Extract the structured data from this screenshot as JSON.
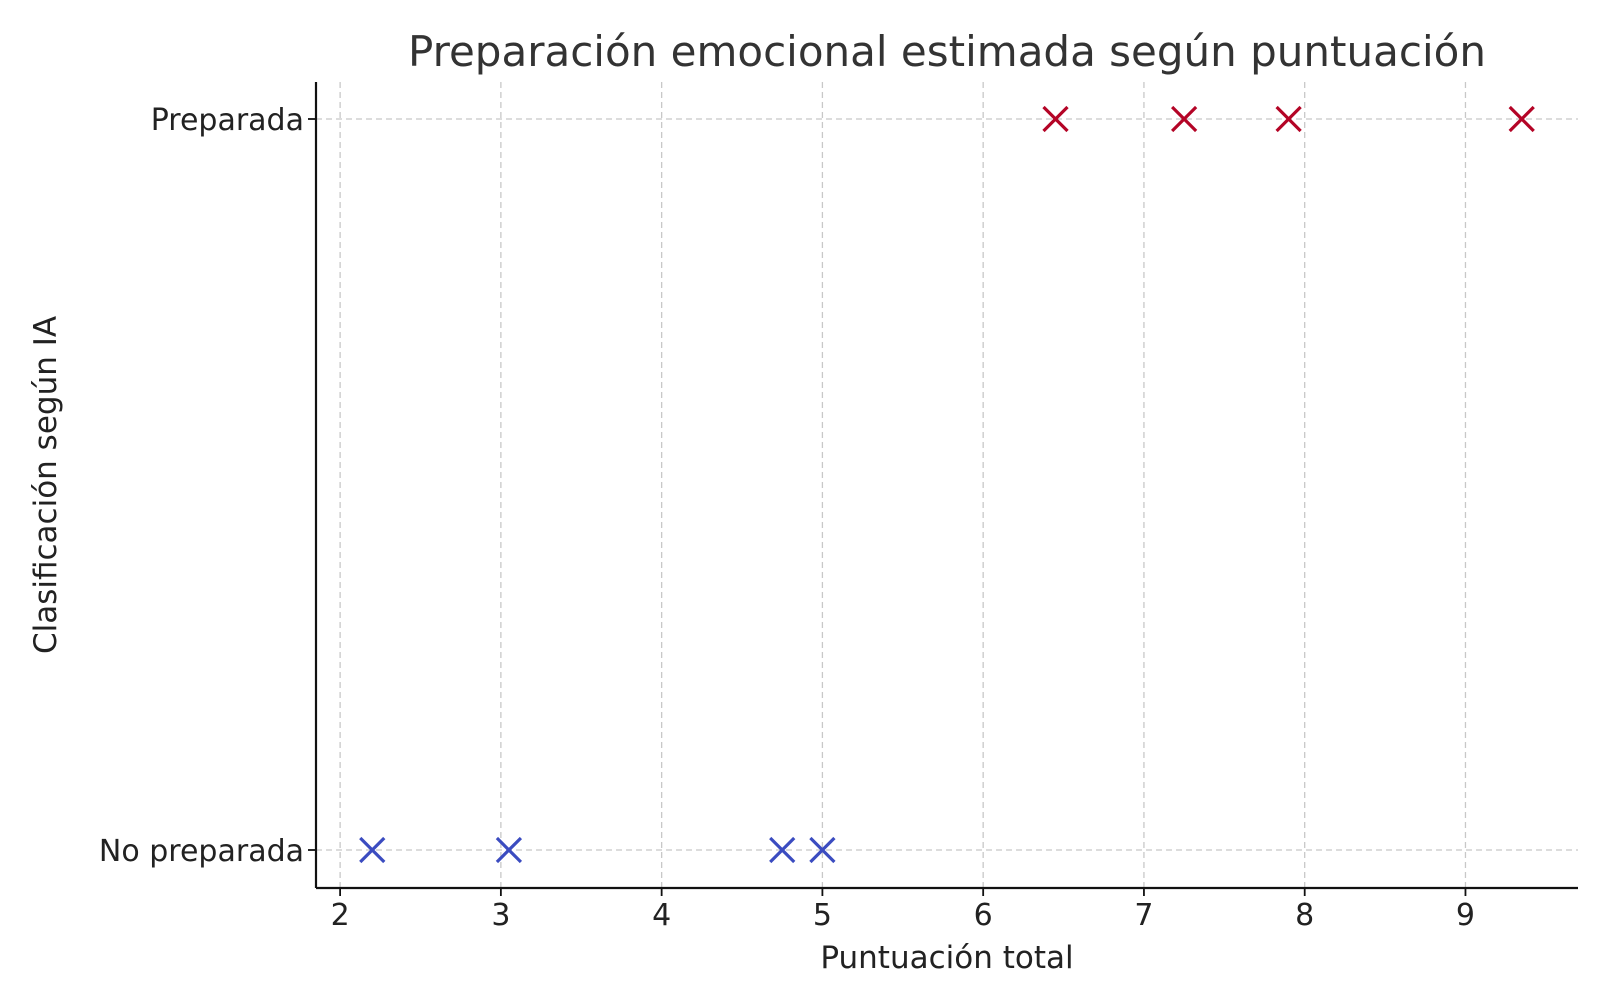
{
  "chart_data": {
    "type": "scatter",
    "title": "Preparación emocional estimada según puntuación",
    "xlabel": "Puntuación total",
    "ylabel": "Clasificación según IA",
    "xlim": [
      1.85,
      9.7
    ],
    "xticks": [
      2,
      3,
      4,
      5,
      6,
      7,
      8,
      9
    ],
    "yticks": [
      0,
      1
    ],
    "ytick_labels": [
      "No preparada",
      "Preparada"
    ],
    "grid": true,
    "marker": "x",
    "colors": {
      "Preparada": "#b40426",
      "No preparada": "#3b4cc0"
    },
    "points": [
      {
        "x": 2.2,
        "y": 0,
        "label": "No preparada"
      },
      {
        "x": 3.05,
        "y": 0,
        "label": "No preparada"
      },
      {
        "x": 4.75,
        "y": 0,
        "label": "No preparada"
      },
      {
        "x": 5.0,
        "y": 0,
        "label": "No preparada"
      },
      {
        "x": 6.45,
        "y": 1,
        "label": "Preparada"
      },
      {
        "x": 7.25,
        "y": 1,
        "label": "Preparada"
      },
      {
        "x": 7.9,
        "y": 1,
        "label": "Preparada"
      },
      {
        "x": 9.35,
        "y": 1,
        "label": "Preparada"
      }
    ]
  }
}
